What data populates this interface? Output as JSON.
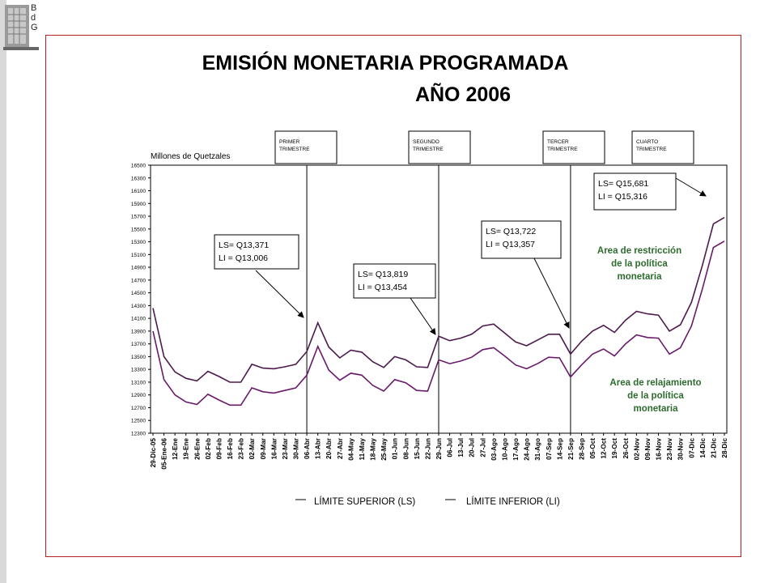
{
  "logo": {
    "letters": [
      "B",
      "d",
      "G"
    ]
  },
  "chart_data": {
    "type": "line",
    "title": "EMISIÓN MONETARIA PROGRAMADA",
    "subtitle": "AÑO 2006",
    "ylabel": "Millones de Quetzales",
    "ylim": [
      12300,
      16500
    ],
    "yticks": [
      16500,
      16300,
      16100,
      15900,
      15700,
      15500,
      15300,
      15100,
      14900,
      14700,
      14500,
      14300,
      14100,
      13900,
      13700,
      13500,
      13300,
      13100,
      12900,
      12700,
      12500,
      12300
    ],
    "categories": [
      "29-Dic-05",
      "05-Ene-06",
      "12-Ene",
      "19-Ene",
      "26-Ene",
      "02-Feb",
      "09-Feb",
      "16-Feb",
      "23-Feb",
      "02-Mar",
      "09-Mar",
      "16-Mar",
      "23-Mar",
      "30-Mar",
      "06-Abr",
      "13-Abr",
      "20-Abr",
      "27-Abr",
      "04-May",
      "11-May",
      "18-May",
      "25-May",
      "01-Jun",
      "08-Jun",
      "15-Jun",
      "22-Jun",
      "29-Jun",
      "06-Jul",
      "13-Jul",
      "20-Jul",
      "27-Jul",
      "03-Ago",
      "10-Ago",
      "17-Ago",
      "24-Ago",
      "31-Ago",
      "07-Sep",
      "14-Sep",
      "21-Sep",
      "28-Sep",
      "05-Oct",
      "12-Oct",
      "19-Oct",
      "26-Oct",
      "02-Nov",
      "09-Nov",
      "16-Nov",
      "23-Nov",
      "30-Nov",
      "07-Dic",
      "14-Dic",
      "21-Dic",
      "28-Dic"
    ],
    "series": [
      {
        "name": "LÍMITE SUPERIOR (LS)",
        "values": [
          14260,
          13500,
          13260,
          13160,
          13120,
          13270,
          13190,
          13100,
          13100,
          13380,
          13320,
          13310,
          13340,
          13380,
          13580,
          14030,
          13650,
          13480,
          13600,
          13570,
          13420,
          13330,
          13500,
          13450,
          13340,
          13330,
          13820,
          13750,
          13790,
          13850,
          13980,
          14010,
          13870,
          13730,
          13670,
          13760,
          13850,
          13850,
          13540,
          13740,
          13900,
          13990,
          13880,
          14070,
          14210,
          14170,
          14150,
          13900,
          14000,
          14350,
          14930,
          15580,
          15680
        ]
      },
      {
        "name": "LÍMITE INFERIOR (LI)",
        "values": [
          13900,
          13140,
          12900,
          12790,
          12750,
          12910,
          12820,
          12740,
          12740,
          13010,
          12950,
          12930,
          12970,
          13010,
          13210,
          13660,
          13290,
          13130,
          13240,
          13210,
          13050,
          12960,
          13140,
          13090,
          12970,
          12960,
          13450,
          13390,
          13430,
          13490,
          13610,
          13640,
          13510,
          13370,
          13310,
          13390,
          13490,
          13480,
          13180,
          13370,
          13540,
          13620,
          13510,
          13700,
          13840,
          13800,
          13790,
          13540,
          13640,
          13980,
          14560,
          15210,
          15310
        ]
      }
    ],
    "quarters": [
      {
        "label_line1": "PRIMER",
        "label_line2": "TRIMESTRE",
        "boundary": "06-Abr"
      },
      {
        "label_line1": "SEGUNDO",
        "label_line2": "TRIMESTRE",
        "boundary": "29-Jun"
      },
      {
        "label_line1": "TERCER",
        "label_line2": "TRIMESTRE",
        "boundary": "21-Sep"
      },
      {
        "label_line1": "CUARTO",
        "label_line2": "TRIMESTRE",
        "boundary": null
      }
    ],
    "annotations": [
      {
        "line1": "LS=  Q13,371",
        "line2": "LI =  Q13,006"
      },
      {
        "line1": "LS= Q13,819",
        "line2": "LI =  Q13,454"
      },
      {
        "line1": "LS= Q13,722",
        "line2": "LI =  Q13,357"
      },
      {
        "line1": "LS= Q15,681",
        "line2": "LI = Q15,316"
      }
    ],
    "area_labels": {
      "restriction": [
        "Area de restricción",
        "de la política",
        "monetaria"
      ],
      "relaxation": [
        "Area de relajamiento",
        "de la política",
        "monetaria"
      ]
    },
    "colors": {
      "ls": "#4d1a4d",
      "li": "#6a1a6a",
      "area_text": "#2e6b2e",
      "frame": "#b22222"
    },
    "legend_position": "bottom"
  }
}
